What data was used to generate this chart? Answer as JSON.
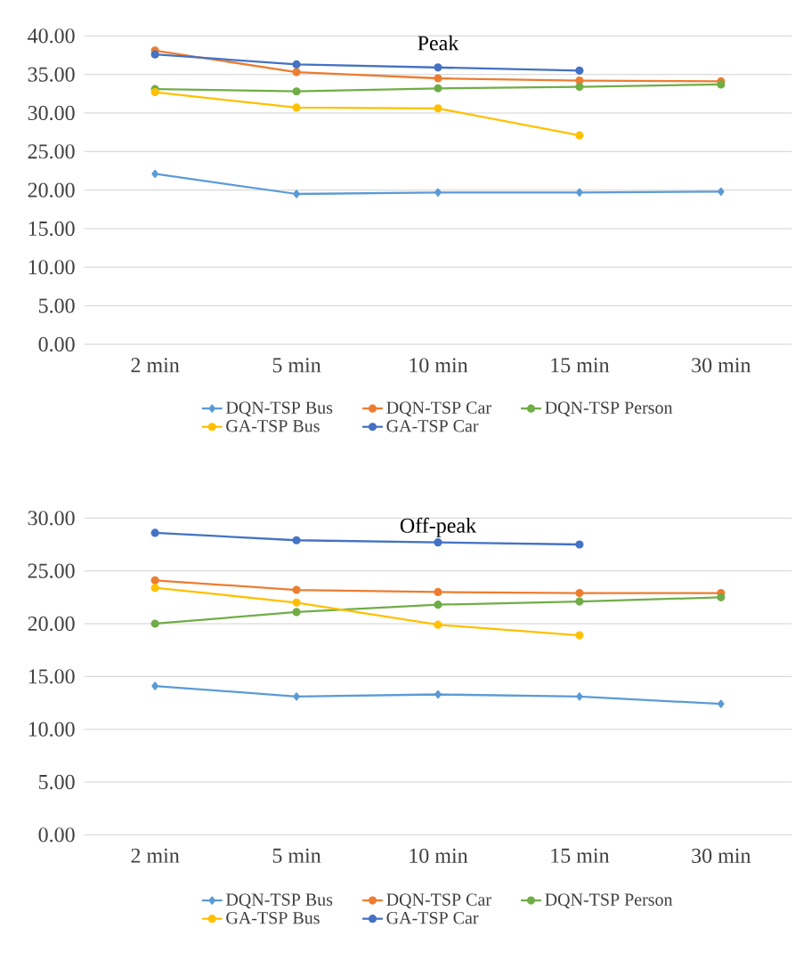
{
  "chart_data": [
    {
      "type": "line",
      "title": "Peak",
      "categories": [
        "2 min",
        "5 min",
        "10 min",
        "15 min",
        "30 min"
      ],
      "series": [
        {
          "name": "DQN-TSP Bus",
          "color": "#5b9bd5",
          "marker": "diamond",
          "values": [
            22.1,
            19.5,
            19.7,
            19.7,
            19.8
          ]
        },
        {
          "name": "DQN-TSP Car",
          "color": "#ed7d31",
          "marker": "circle",
          "values": [
            38.1,
            35.3,
            34.5,
            34.2,
            34.1
          ]
        },
        {
          "name": "DQN-TSP Person",
          "color": "#70ad47",
          "marker": "circle",
          "values": [
            33.1,
            32.8,
            33.2,
            33.4,
            33.7
          ]
        },
        {
          "name": "GA-TSP Bus",
          "color": "#ffc000",
          "marker": "circle",
          "values": [
            32.7,
            30.7,
            30.6,
            27.1,
            null
          ]
        },
        {
          "name": "GA-TSP Car",
          "color": "#4472c4",
          "marker": "circle",
          "values": [
            37.6,
            36.3,
            35.9,
            35.5,
            null
          ]
        }
      ],
      "ylim": [
        0,
        40
      ],
      "yticks": [
        {
          "value": 0,
          "label": "0.00"
        },
        {
          "value": 5,
          "label": "5.00"
        },
        {
          "value": 10,
          "label": "10.00"
        },
        {
          "value": 15,
          "label": "15.00"
        },
        {
          "value": 20,
          "label": "20.00"
        },
        {
          "value": 25,
          "label": "25.00"
        },
        {
          "value": 30,
          "label": "30.00"
        },
        {
          "value": 35,
          "label": "35.00"
        },
        {
          "value": 40,
          "label": "40.00"
        }
      ],
      "grid": "y",
      "legend": "bottom",
      "line_style": "solid"
    },
    {
      "type": "line",
      "title": "Off-peak",
      "categories": [
        "2 min",
        "5 min",
        "10 min",
        "15 min",
        "30 min"
      ],
      "series": [
        {
          "name": "DQN-TSP Bus",
          "color": "#5b9bd5",
          "marker": "diamond",
          "values": [
            14.1,
            13.1,
            13.3,
            13.1,
            12.4
          ]
        },
        {
          "name": "DQN-TSP Car",
          "color": "#ed7d31",
          "marker": "circle",
          "values": [
            24.1,
            23.2,
            23.0,
            22.9,
            22.9
          ]
        },
        {
          "name": "DQN-TSP Person",
          "color": "#70ad47",
          "marker": "circle",
          "values": [
            20.0,
            21.1,
            21.8,
            22.1,
            22.5
          ]
        },
        {
          "name": "GA-TSP Bus",
          "color": "#ffc000",
          "marker": "circle",
          "values": [
            23.4,
            22.0,
            19.9,
            18.9,
            null
          ]
        },
        {
          "name": "GA-TSP Car",
          "color": "#4472c4",
          "marker": "circle",
          "values": [
            28.6,
            27.9,
            27.7,
            27.5,
            null
          ]
        }
      ],
      "ylim": [
        0,
        30
      ],
      "yticks": [
        {
          "value": 0,
          "label": "0.00"
        },
        {
          "value": 5,
          "label": "5.00"
        },
        {
          "value": 10,
          "label": "10.00"
        },
        {
          "value": 15,
          "label": "15.00"
        },
        {
          "value": 20,
          "label": "20.00"
        },
        {
          "value": 25,
          "label": "25.00"
        },
        {
          "value": 30,
          "label": "30.00"
        }
      ],
      "grid": "y",
      "legend": "bottom",
      "line_style": "solid"
    }
  ]
}
